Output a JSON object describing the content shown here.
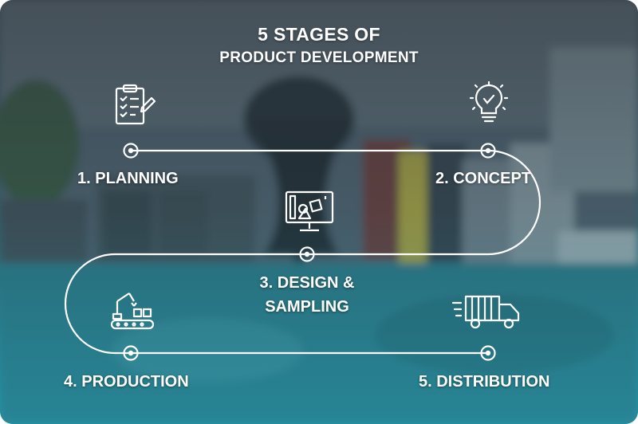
{
  "title": {
    "line1": "5 STAGES OF",
    "line2": "PRODUCT DEVELOPMENT"
  },
  "stages": [
    {
      "label": "1. PLANNING",
      "icon": "clipboard-checklist-icon"
    },
    {
      "label": "2. CONCEPT",
      "icon": "lightbulb-icon"
    },
    {
      "label_line1": "3. DESIGN &",
      "label_line2": "SAMPLING",
      "icon": "design-monitor-icon"
    },
    {
      "label": "4. PRODUCTION",
      "icon": "robotic-arm-conveyor-icon"
    },
    {
      "label": "5. DISTRIBUTION",
      "icon": "delivery-truck-icon"
    }
  ],
  "colors": {
    "text": "#ffffff",
    "path": "#ffffff",
    "gradient_top": "#4a5560",
    "gradient_bottom": "#2aa3b3"
  }
}
